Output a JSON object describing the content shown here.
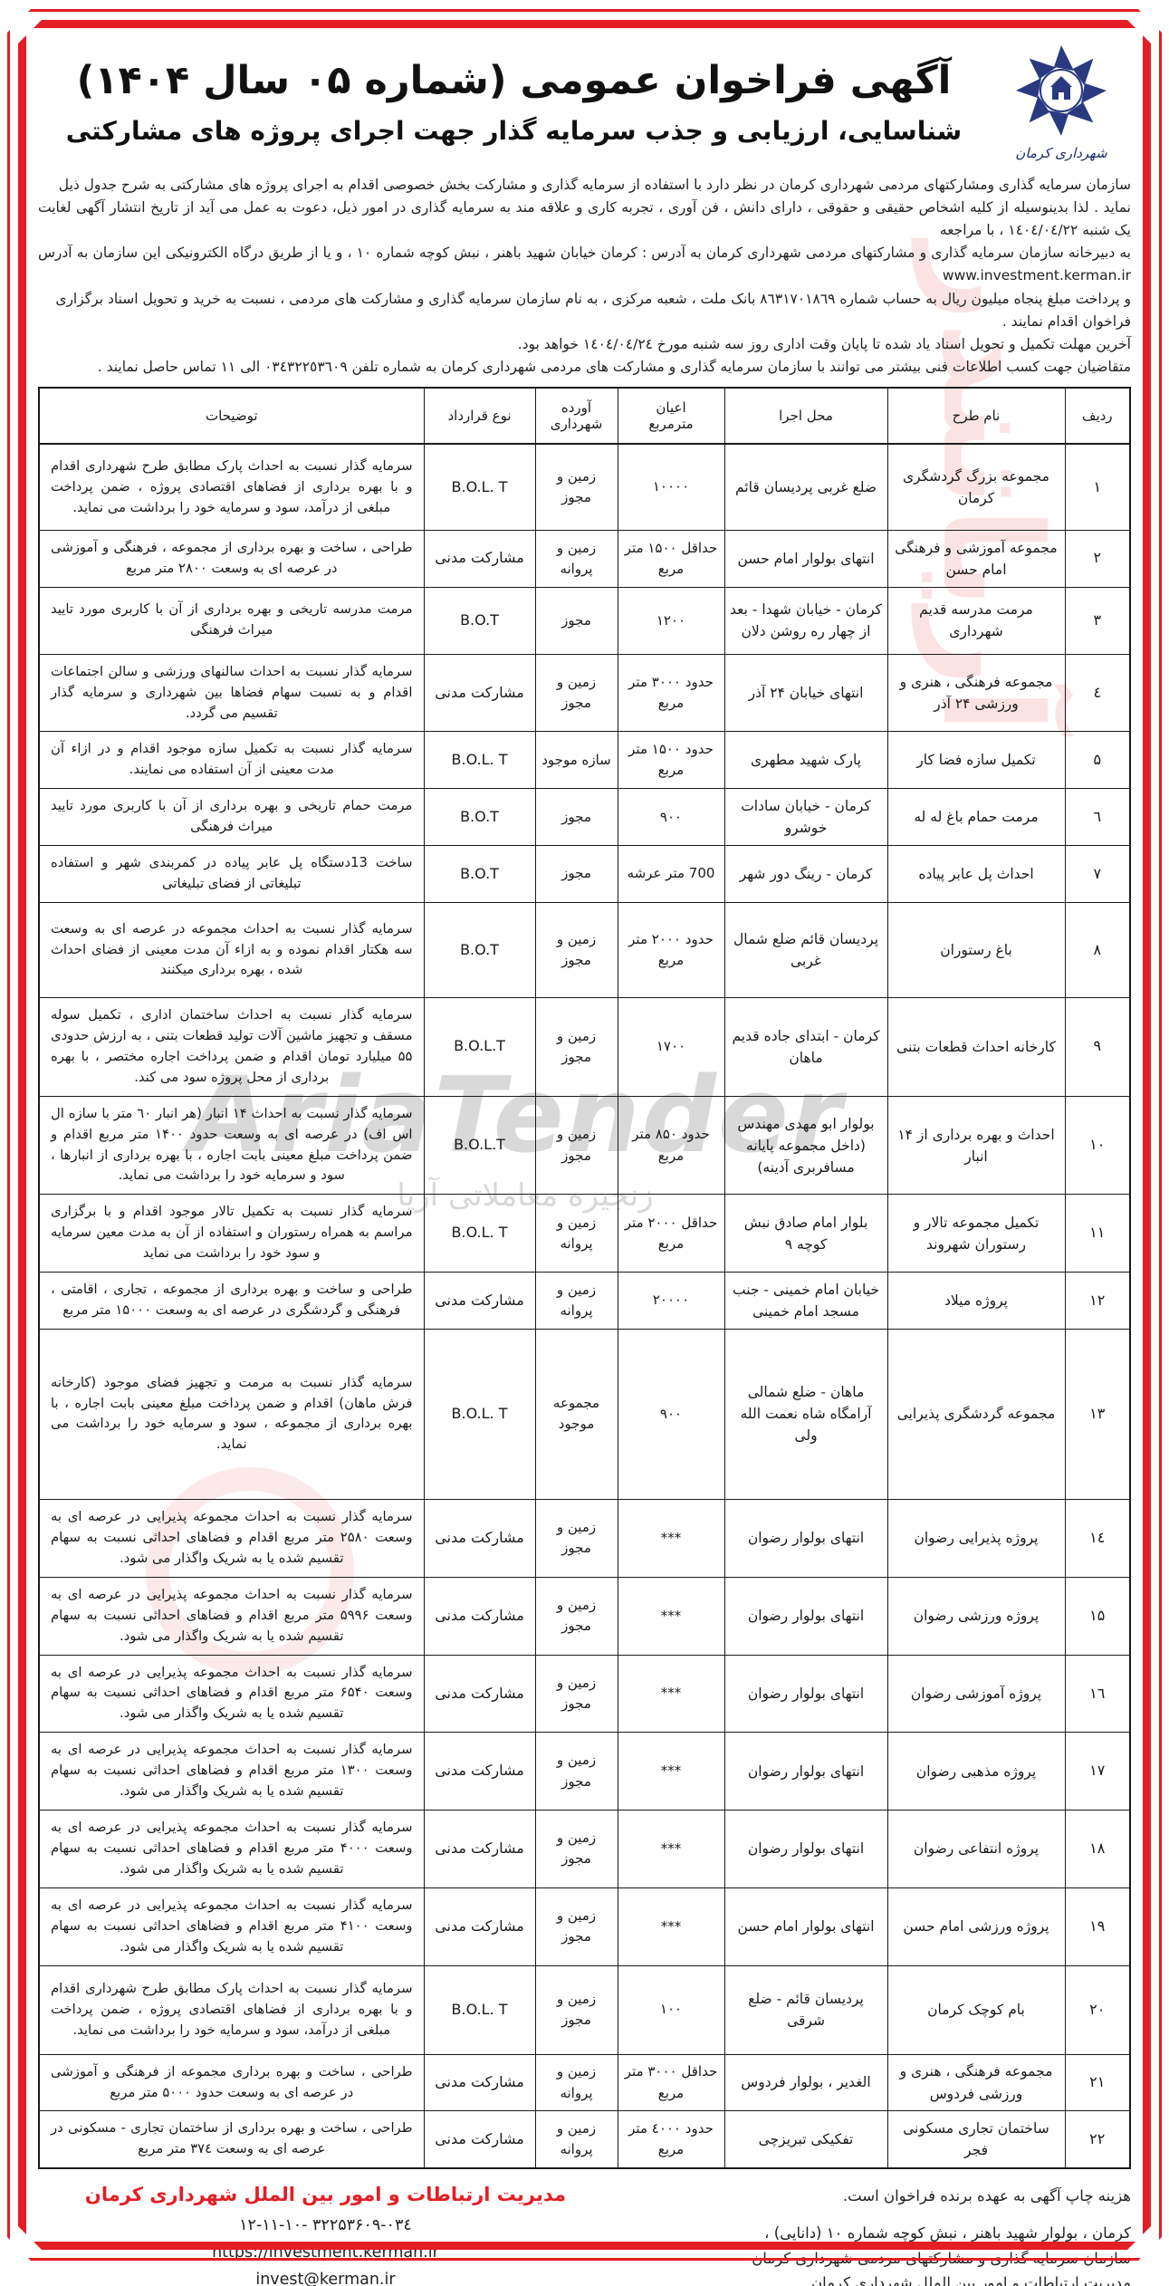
{
  "colors": {
    "accent_red": "#e31e24",
    "logo_navy": "#1e2c6b",
    "ink": "#1a1a1a"
  },
  "header": {
    "logo_org": "شهرداری کرمان",
    "title": "آگهی فراخوان عمومی (شماره ۰۵ سال ۱۴۰۴)",
    "subtitle": "شناسایی، ارزیابی و جذب سرمایه گذار جهت اجرای پروژه های مشارکتی"
  },
  "intro": {
    "lines": [
      "سازمان سرمایه گذاری ومشارکتهای مردمی شهرداری کرمان در نظر دارد با استفاده از سرمایه گذاری و مشارکت بخش خصوصی اقدام  به اجرای پروژه های مشارکتی به شرح جدول ذیل",
      "نماید . لذا بدینوسیله از کلیه اشخاص حقیقی و حقوقی ، دارای دانش ، فن آوری ، تجربه کاری و علاقه مند به سرمایه گذاری در امور ذیل، دعوت به عمل می آید از تاریخ انتشار آگهی  لغایت یک شنبه ١٤٠٤/٠٤/٢٢ ، با مراجعه",
      "به دبیرخانه سازمان سرمایه گذاری و مشارکتهای مردمی شهرداری کرمان به آدرس : کرمان خیابان شهید باهنر ، نبش کوچه شماره ۱۰ ، و یا از طریق درگاه الکترونیکی این سازمان به آدرس www.investment.kerman.ir",
      "و پرداخت مبلغ پنجاه میلیون ریال به حساب شماره ٨٦٣١٧٠١٨٦٩  بانک ملت ، شعبه مرکزی ، به نام سازمان سرمایه گذاری و مشارکت های مردمی ، نسبت به خرید و تحویل اسناد برگزاری فراخوان اقدام نمایند ."
    ],
    "deadline_line": "آخرین مهلت  تکمیل و تحویل اسناد یاد شده تا پایان وقت اداری روز سه شنبه  مورخ ١٤٠٤/٠٤/٢٤  خواهد بود.",
    "contact_line": "متقاضیان جهت کسب اطلاعات فنی بیشتر می توانند با سازمان سرمایه گذاری و مشارکت های مردمی شهرداری کرمان به شماره تلفن ٠٣٤٣٢٢٥٣٦٠٩ الی ١١  تماس حاصل نمایند ."
  },
  "table": {
    "headers": [
      "ردیف",
      "نام طرح",
      "محل اجرا",
      "اعیان\nمترمربع",
      "آورده\nشهرداری",
      "نوع قرارداد",
      "توضیحات"
    ],
    "rows": [
      {
        "no": "۱",
        "name": "مجموعه بزرگ گردشگری کرمان",
        "location": "ضلع غربی پردیسان قائم",
        "area": "۱۰۰۰۰",
        "bring": "زمین و مجوز",
        "contract": "B.O.L. T",
        "desc": "سرمایه گذار نسبت به احداث پارک مطابق طرح شهرداری اقدام و با بهره برداری از فضاهای اقتصادی پروژه ، ضمن پرداخت مبلغی از درآمد، سود و سرمایه خود را برداشت می نماید."
      },
      {
        "no": "۲",
        "name": "مجموعه آموزشی و فرهنگی امام حسن",
        "location": "انتهای بولوار امام حسن",
        "area": "حداقل ۱۵۰۰ متر مربع",
        "bring": "زمین و پروانه",
        "contract": "مشارکت مدنی",
        "desc": "طراحی ، ساخت و بهره برداری از مجموعه ، فرهنگی و آموزشی در عرصه ای به وسعت ۲۸۰۰ متر مربع"
      },
      {
        "no": "۳",
        "name": "مرمت مدرسه قدیم شهرداری",
        "location": "کرمان - خیابان شهدا - بعد از چهار ره روشن دلان",
        "area": "۱۲۰۰",
        "bring": "مجوز",
        "contract": "B.O.T",
        "desc": "مرمت مدرسه تاریخی و بهره برداری از آن با کاربری مورد تایید میراث فرهنگی"
      },
      {
        "no": "٤",
        "name": "مجموعه فرهنگی ، هنری و ورزشی ۲۴ آذر",
        "location": "انتهای خیابان ۲۴ آذر",
        "area": "حدود ۳۰۰۰ متر مربع",
        "bring": "زمین و مجوز",
        "contract": "مشارکت مدنی",
        "desc": "سرمایه گذار نسبت به احداث سالنهای ورزشی و سالن اجتماعات اقدام و به نسبت سهام فضاها بین شهرداری و سرمایه گذار تقسیم می گردد."
      },
      {
        "no": "۵",
        "name": "تکمیل سازه فضا کار",
        "location": "پارک شهید مطهری",
        "area": "حدود ۱۵۰۰ متر مربع",
        "bring": "سازه موجود",
        "contract": "B.O.L. T",
        "desc": "سرمایه گذار نسبت به تکمیل سازه موجود اقدام و در ازاء آن مدت معینی از آن استفاده می نمایند."
      },
      {
        "no": "٦",
        "name": "مرمت حمام باغ له له",
        "location": "کرمان - خیابان سادات خوشرو",
        "area": "۹۰۰",
        "bring": "مجوز",
        "contract": "B.O.T",
        "desc": "مرمت حمام تاریخی و بهره برداری از آن با کاربری مورد تایید میراث فرهنگی"
      },
      {
        "no": "۷",
        "name": "احداث پل عابر پیاده",
        "location": "کرمان - رینگ دور شهر",
        "area": "700 متر عرشه",
        "bring": "مجوز",
        "contract": "B.O.T",
        "desc": "ساخت  13دستگاه پل عابر پیاده در کمربندی شهر و استفاده تبلیغاتی از فضای تبلیغاتی"
      },
      {
        "no": "۸",
        "name": "باغ رستوران",
        "location": "پردیسان قائم ضلع شمال غربی",
        "area": "حدود ۲۰۰۰ متر مربع",
        "bring": "زمین و مجوز",
        "contract": "B.O.T",
        "desc": "سرمایه گذار نسبت به احداث مجموعه در عرصه ای به وسعت سه هکتار اقدام نموده و به ازاء آن مدت معینی از فضای احداث شده ، بهره برداری میکنند"
      },
      {
        "no": "۹",
        "name": "کارخانه احداث قطعات بتنی",
        "location": "کرمان - ابتدای جاده قدیم ماهان",
        "area": "۱۷۰۰",
        "bring": "زمین و مجوز",
        "contract": "B.O.L.T",
        "desc": "سرمایه گذار نسبت به  احداث  ساختمان اداری ، تکمیل سوله مسقف و تجهیز ماشین آلات تولید قطعات بتنی ، به ارزش حدودی ۵۵ میلیارد تومان  اقدام و ضمن پرداخت اجاره مختصر ، با بهره برداری از محل پروژه سود می کند."
      },
      {
        "no": "۱۰",
        "name": "احداث و بهره برداری از ۱۴ انبار",
        "location": "بولوار ابو مهدی مهندس (داخل مجموعه پایانه مسافربری آدینه)",
        "area": "حدود ۸۵۰ متر مربع",
        "bring": "زمین و مجوز",
        "contract": "B.O.L.T",
        "desc": "سرمایه گذار نسبت به احداث ۱۴ انبار (هر انبار ٦۰ متر با سازه ال اس اف) در عرصه ای به وسعت حدود ۱۴۰۰ متر مربع اقدام و ضمن پرداخت مبلغ معینی  بابت اجاره ، با بهره برداری از انبارها ، سود و سرمایه خود را برداشت می نماید."
      },
      {
        "no": "۱۱",
        "name": "تکمیل مجموعه تالار و رستوران شهروند",
        "location": "بلوار امام صادق نبش کوچه ۹",
        "area": "حداقل ۲۰۰۰ متر مربع",
        "bring": "زمین و پروانه",
        "contract": "B.O.L. T",
        "desc": "سرمایه گذار نسبت به تکمیل تالار موجود اقدام و با برگزاری مراسم به همراه رستوران و استفاده از آن به مدت معین سرمایه و سود خود را برداشت می نماید"
      },
      {
        "no": "۱۲",
        "name": "پروژه میلاد",
        "location": "خیابان امام خمینی - جنب مسجد امام خمینی",
        "area": "۲۰۰۰۰",
        "bring": "زمین و پروانه",
        "contract": "مشارکت مدنی",
        "desc": "طراحی و ساخت و بهره برداری از مجموعه ، تجاری ، اقامتی ، فرهنگی و گردشگری در عرصه ای به وسعت ۱۵۰۰۰ متر مربع"
      },
      {
        "no": "۱۳",
        "name": "مجموعه گردشگری پذیرایی",
        "location": "ماهان - ضلع شمالی آرامگاه شاه نعمت الله ولی",
        "area": "۹۰۰",
        "bring": "مجموعه موجود",
        "contract": "B.O.L. T",
        "desc": "سرمایه گذار نسبت به مرمت و تجهیز فضای موجود (کارخانه فرش ماهان) اقدام و  ضمن پرداخت مبلغ معینی  بابت اجاره ، با بهره برداری از مجموعه ، سود و سرمایه خود را برداشت می نماید."
      },
      {
        "no": "۱٤",
        "name": "پروژه پذیرایی رضوان",
        "location": "انتهای بولوار رضوان",
        "area": "***",
        "bring": "زمین و مجوز",
        "contract": "مشارکت مدنی",
        "desc": "سرمایه گذار نسبت به احداث مجموعه پذیرایی در عرصه  ای به وسعت ۲۵۸۰ متر مربع اقدام و فضاهای احداثی نسبت به سهام تقسیم  شده یا به شریک واگذار می شود."
      },
      {
        "no": "۱۵",
        "name": "پروژه ورزشی رضوان",
        "location": "انتهای بولوار رضوان",
        "area": "***",
        "bring": "زمین و مجوز",
        "contract": "مشارکت مدنی",
        "desc": "سرمایه گذار نسبت به احداث مجموعه پذیرایی در عرصه  ای به وسعت ۵۹۹۶ متر مربع اقدام و فضاهای احداثی نسبت به سهام تقسیم  شده یا به شریک واگذار می شود."
      },
      {
        "no": "۱٦",
        "name": "پروژه آموزشی رضوان",
        "location": "انتهای بولوار رضوان",
        "area": "***",
        "bring": "زمین و مجوز",
        "contract": "مشارکت مدنی",
        "desc": "سرمایه گذار نسبت به احداث مجموعه پذیرایی در عرصه  ای به وسعت ۶۵۴۰ متر مربع اقدام و فضاهای احداثی نسبت به سهام تقسیم  شده یا به شریک واگذار می شود."
      },
      {
        "no": "۱۷",
        "name": "پروژه مذهبی رضوان",
        "location": "انتهای بولوار رضوان",
        "area": "***",
        "bring": "زمین و مجوز",
        "contract": "مشارکت مدنی",
        "desc": "سرمایه گذار نسبت به احداث مجموعه پذیرایی در عرصه  ای به وسعت ۱۳۰۰ متر مربع اقدام و فضاهای احداثی نسبت به سهام تقسیم  شده یا به شریک واگذار می شود."
      },
      {
        "no": "۱۸",
        "name": "پروژه انتفاعی رضوان",
        "location": "انتهای بولوار رضوان",
        "area": "***",
        "bring": "زمین و مجوز",
        "contract": "مشارکت مدنی",
        "desc": "سرمایه گذار نسبت به احداث مجموعه پذیرایی در عرصه  ای به وسعت ۴۰۰۰ متر مربع اقدام و فضاهای احداثی نسبت به سهام تقسیم  شده یا به شریک واگذار می شود."
      },
      {
        "no": "۱۹",
        "name": "پروژه ورزشی امام حسن",
        "location": "انتهای بولوار امام حسن",
        "area": "***",
        "bring": "زمین و مجوز",
        "contract": "مشارکت مدنی",
        "desc": "سرمایه گذار نسبت به احداث مجموعه پذیرایی در عرصه  ای به وسعت ۴۱۰۰ متر مربع اقدام و فضاهای احداثی نسبت به سهام تقسیم  شده یا به شریک واگذار می شود."
      },
      {
        "no": "۲۰",
        "name": "بام کوچک کرمان",
        "location": "پردیسان قائم - ضلع شرقی",
        "area": "۱۰۰",
        "bring": "زمین و مجوز",
        "contract": "B.O.L. T",
        "desc": "سرمایه گذار نسبت به احداث پارک مطابق طرح شهرداری اقدام و با بهره برداری از فضاهای اقتصادی پروژه ، ضمن پرداخت مبلغی از درآمد، سود و سرمایه خود را برداشت می نماید."
      },
      {
        "no": "۲۱",
        "name": "مجموعه فرهنگی ، هنری و ورزشی فردوس",
        "location": "الغدیر ، بولوار فردوس",
        "area": "حداقل ۳۰۰۰ متر مربع",
        "bring": "زمین و پروانه",
        "contract": "مشارکت مدنی",
        "desc": "طراحی ، ساخت و بهره برداری مجموعه از فرهنگی و آموزشی در عرصه ای به وسعت حدود ۵۰۰۰  متر مربع"
      },
      {
        "no": "۲۲",
        "name": "ساختمان تجاری مسکونی فجر",
        "location": "تفکیکی تبریزچی",
        "area": "حدود ٤۰۰۰ متر مربع",
        "bring": "زمین و پروانه",
        "contract": "مشارکت مدنی",
        "desc": "طراحی ، ساخت و بهره برداری از ساختمان تجاری - مسکونی در عرصه ای به وسعت ۳۷٤ متر مربع"
      }
    ]
  },
  "footer": {
    "print_note": "هزینه چاپ آگهی به عهده برنده فراخوان است.",
    "address_lines": [
      "کرمان ، بولوار شهید باهنر ، نبش کوچه شماره ۱۰ (دانایی) ،",
      "سازمان سرمایه گذاری و مشارکتهای مردمی شهرداری کرمان",
      "مدیریت ارتباطات و امور بین الملل شهرداری کرمان"
    ],
    "dept_title": "مدیریت ارتباطات و امور بین الملل شهرداری کرمان",
    "phone": "۱۲-۱۱-۱۰- ۳۲۲۵۳۶۰۹-۰۳٤",
    "website": "https://investment.kerman.ir",
    "email": "invest@kerman.ir"
  },
  "watermarks": {
    "aria_en": "AriaTender",
    "aria_fa": "زنجیره معاملاتی آریا",
    "aria_side": "آریاتندر"
  }
}
